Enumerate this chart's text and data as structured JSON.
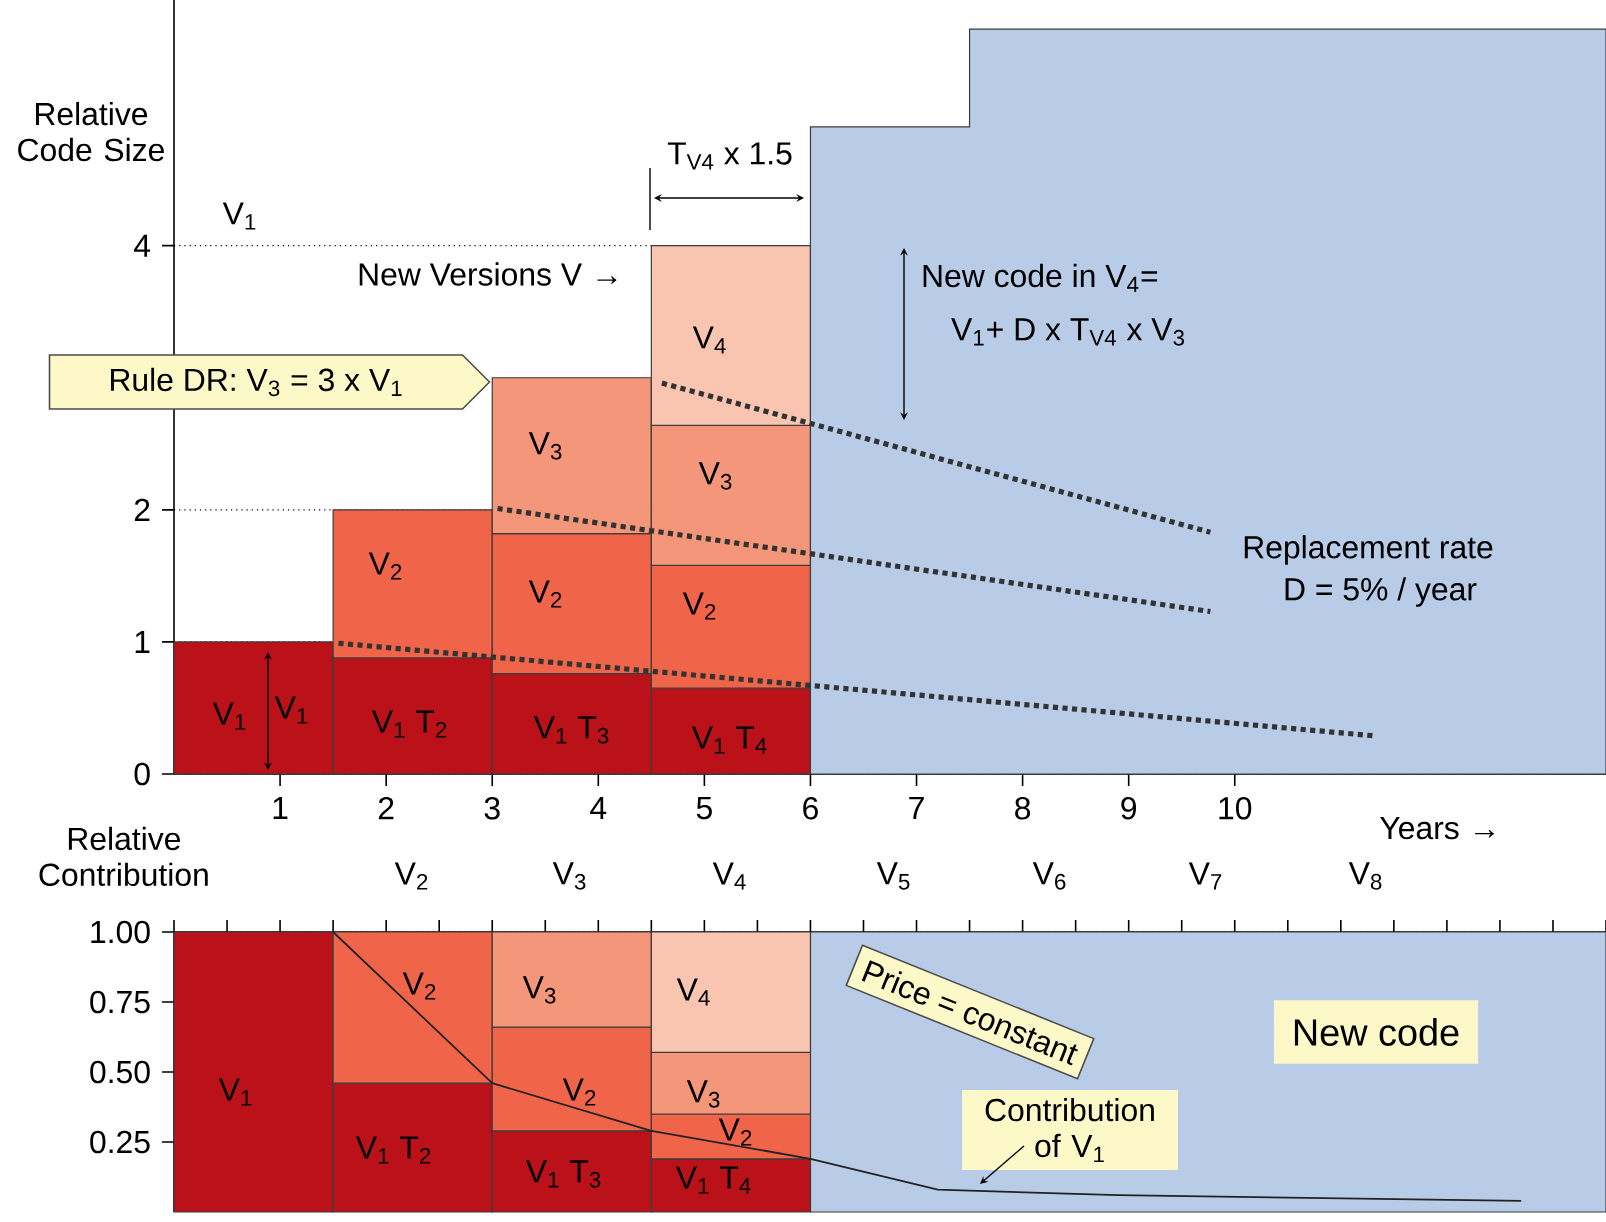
{
  "chart_data": [
    {
      "type": "bar",
      "stacked": true,
      "xlabel": "Years →",
      "ylabel": "Relative Code Size",
      "x": [
        0.75,
        2.25,
        3.75,
        5.25
      ],
      "series": [
        {
          "color": "#bb1219",
          "values": [
            1,
            0.88,
            0.76,
            0.65
          ]
        },
        {
          "color": "#f0654a",
          "values": [
            null,
            1.12,
            1.06,
            0.93
          ]
        },
        {
          "color": "#f4967a",
          "values": [
            null,
            null,
            1.18,
            1.06
          ]
        },
        {
          "color": "#f9c5b0",
          "values": [
            null,
            null,
            null,
            1.36
          ]
        },
        {
          "type": "area",
          "color": "#b8cce8",
          "x": [
            6,
            6,
            6,
            6,
            6,
            7.5,
            7.5,
            13.5
          ],
          "values": [
            0,
            0,
            0,
            0,
            4.9,
            4.9,
            5.64,
            5.64
          ]
        },
        {
          "type": "line",
          "color": "#333333",
          "line_style": "dotted",
          "x": [
            1.55,
            11.3
          ],
          "values": [
            0.99,
            0.29
          ]
        },
        {
          "type": "line",
          "color": "#333333",
          "line_style": "dotted",
          "x": [
            3.05,
            9.77
          ],
          "values": [
            2.01,
            1.23
          ]
        },
        {
          "type": "line",
          "color": "#333333",
          "line_style": "dotted",
          "x": [
            4.6,
            9.77
          ],
          "values": [
            2.96,
            1.83
          ]
        }
      ],
      "xlim": [
        0,
        13.5
      ],
      "ylim": [
        0,
        5.86
      ],
      "xticks": [
        1,
        2,
        3,
        4,
        5,
        6,
        7,
        8,
        9,
        10
      ],
      "yticks": [
        0,
        1,
        2,
        4
      ],
      "grid": "y",
      "annotations": [
        "V$_{1}$",
        "New Versions V →",
        "Rule DR: V$_{3}$ =  3 x V$_{1}$",
        "T$_{V4}$  x 1.5",
        "New code in V$_{4}$=",
        "V$_{1}$+ D x T$_{V4}$  x V$_{3}$",
        "Replacement rate",
        "D = 5% / year",
        "V$_{1}$",
        "V$_{1}$",
        "V$_{2}$",
        "V$_{1}$ T$_{2}$",
        "V$_{3}$",
        "V$_{2}$",
        "V$_{1}$ T$_{3}$",
        "V$_{4}$",
        "V$_{3}$",
        "V$_{2}$",
        "V$_{1}$ T$_{4}$"
      ]
    },
    {
      "type": "bar",
      "stacked": true,
      "ylabel": "Relative Contribution",
      "x": [
        0.75,
        2.25,
        3.75,
        5.25
      ],
      "series": [
        {
          "color": "#bb1219",
          "values": [
            1,
            0.46,
            0.29,
            0.19
          ]
        },
        {
          "color": "#f0654a",
          "values": [
            null,
            0.54,
            0.37,
            0.16
          ]
        },
        {
          "color": "#f4967a",
          "values": [
            null,
            null,
            0.34,
            0.22
          ]
        },
        {
          "color": "#f9c5b0",
          "values": [
            null,
            null,
            null,
            0.43
          ]
        },
        {
          "type": "line",
          "color": "#222222",
          "line_style": "solid",
          "x": [
            1.5,
            3.0,
            4.5,
            6.0,
            7.2,
            8.9,
            12.7
          ],
          "values": [
            1.0,
            0.46,
            0.29,
            0.19,
            0.08,
            0.06,
            0.04
          ]
        }
      ],
      "xlim": [
        0,
        13.5
      ],
      "ylim": [
        0,
        1
      ],
      "tick_labels": "y",
      "bands": [
        {
          "axis": "x",
          "from": 6,
          "to": 13.5,
          "color": "#b8cce8"
        }
      ],
      "yticks": [
        {
          "value": 0.25,
          "label": "0.25"
        },
        {
          "value": 0.5,
          "label": "0.50"
        },
        {
          "value": 0.75,
          "label": "0.75"
        },
        {
          "value": 1,
          "label": "1.00"
        }
      ],
      "grid": "y",
      "annotations": [
        "Price = constant",
        "New code",
        "Contribution of V$_{1}$",
        "V$_{1}$",
        "V$_{2}$",
        "V$_{1}$ T$_{2}$",
        "V$_{3}$",
        "V$_{2}$",
        "V$_{1}$ T$_{3}$",
        "V$_{4}$",
        "V$_{3}$",
        "V$_{2}$",
        "V$_{1}$ T$_{4}$",
        "V$_{2}$",
        "V$_{3}$",
        "V$_{4}$",
        "V$_{5}$",
        "V$_{6}$",
        "V$_{7}$",
        "V$_{8}$"
      ]
    }
  ]
}
